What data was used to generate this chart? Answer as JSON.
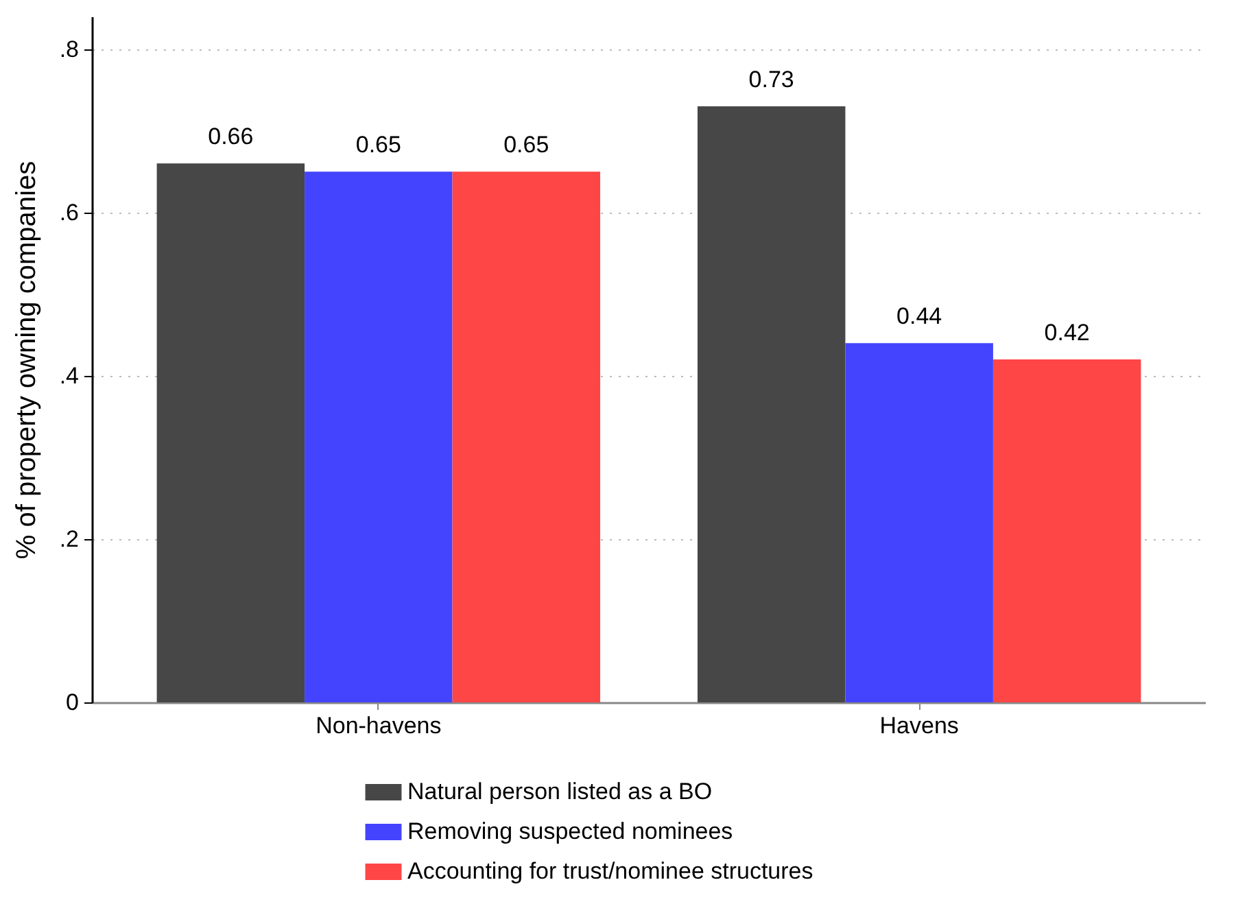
{
  "chart_data": {
    "type": "bar",
    "ylabel": "% of property owning companies",
    "categories": [
      "Non-havens",
      "Havens"
    ],
    "series": [
      {
        "name": "Natural person listed as a BO",
        "color": "#474747",
        "values": [
          0.66,
          0.73
        ]
      },
      {
        "name": "Removing suspected nominees",
        "color": "#4444ff",
        "values": [
          0.65,
          0.44
        ]
      },
      {
        "name": "Accounting for trust/nominee structures",
        "color": "#ff4646",
        "values": [
          0.65,
          0.42
        ]
      }
    ],
    "ylim": [
      0,
      0.84
    ],
    "yticks": [
      0,
      {
        "value": 0.2,
        "label": ".2"
      },
      {
        "value": 0.4,
        "label": ".4"
      },
      {
        "value": 0.6,
        "label": ".6"
      },
      {
        "value": 0.8,
        "label": ".8"
      }
    ],
    "grid": "y",
    "legend": "bottom",
    "data_labels": true
  }
}
